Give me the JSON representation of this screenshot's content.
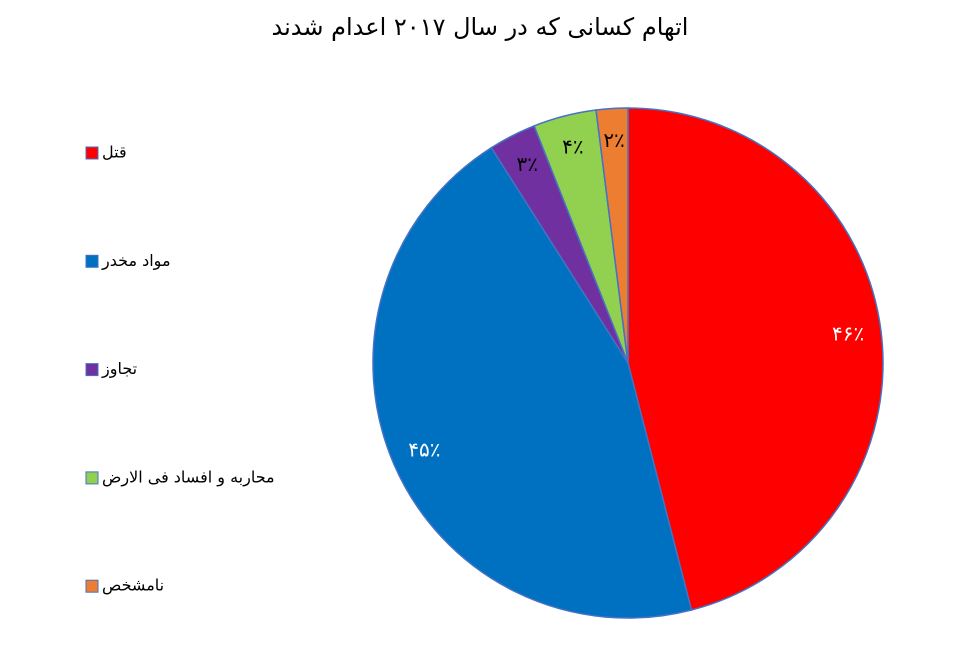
{
  "chart_data": {
    "type": "pie",
    "title": "اتهام کسانی که در سال ۲۰۱۷ اعدام شدند",
    "categories": [
      "قتل",
      "مواد مخدر",
      "تجاوز",
      "محاربه و افساد فی الارض",
      "نامشخص"
    ],
    "values": [
      46,
      45,
      3,
      4,
      2
    ],
    "value_labels": [
      "۴۶٪",
      "۴۵٪",
      "۳٪",
      "۴٪",
      "۲٪"
    ],
    "colors": [
      "#ff0000",
      "#0070c0",
      "#7030a0",
      "#92d050",
      "#ed7d31"
    ],
    "legend": "left"
  }
}
